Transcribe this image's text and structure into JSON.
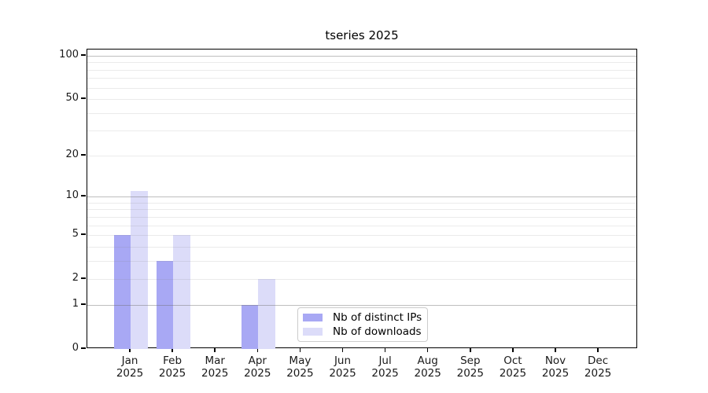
{
  "chart_data": {
    "type": "bar",
    "title": "tseries 2025",
    "categories": [
      "Jan 2025",
      "Feb 2025",
      "Mar 2025",
      "Apr 2025",
      "May 2025",
      "Jun 2025",
      "Jul 2025",
      "Aug 2025",
      "Sep 2025",
      "Oct 2025",
      "Nov 2025",
      "Dec 2025"
    ],
    "series": [
      {
        "name": "Nb of distinct IPs",
        "color": "#a8a8f4",
        "values": [
          5,
          3,
          0,
          1,
          0,
          0,
          0,
          0,
          0,
          0,
          0,
          0
        ]
      },
      {
        "name": "Nb of downloads",
        "color": "#dcdcf9",
        "values": [
          11,
          5,
          0,
          2,
          0,
          0,
          0,
          0,
          0,
          0,
          0,
          0
        ]
      }
    ],
    "yscale": "log1p",
    "ylim": [
      0,
      110
    ],
    "ytick_labels": [
      0,
      1,
      2,
      5,
      10,
      20,
      50,
      100
    ],
    "grid_major_values": [
      1,
      10,
      100
    ],
    "grid_minor_values": [
      2,
      3,
      4,
      5,
      6,
      7,
      8,
      9,
      20,
      30,
      40,
      50,
      60,
      70,
      80,
      90
    ],
    "legend_position": "lower-center-inside",
    "grid": true,
    "background": "#ffffff",
    "spine_color": "#000000"
  },
  "legend": {
    "entries": [
      {
        "label": "Nb of distinct IPs",
        "swatch_color": "#a8a8f4"
      },
      {
        "label": "Nb of downloads",
        "swatch_color": "#dcdcf9"
      }
    ]
  }
}
